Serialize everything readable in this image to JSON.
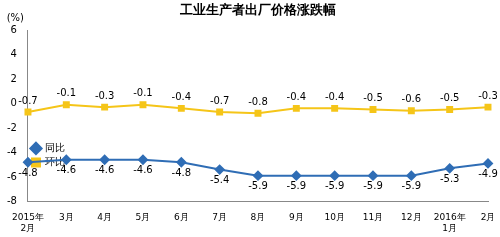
{
  "chart_data": {
    "type": "line",
    "title": "工业生产者出厂价格涨跌幅",
    "ylabel": "(%)",
    "categories": [
      "2015年2月",
      "3月",
      "4月",
      "5月",
      "6月",
      "7月",
      "8月",
      "9月",
      "10月",
      "11月",
      "12月",
      "2016年1月",
      "2月"
    ],
    "series": [
      {
        "name": "同比",
        "color": "#2f6db5",
        "marker": "diamond",
        "values": [
          -4.8,
          -4.6,
          -4.6,
          -4.6,
          -4.8,
          -5.4,
          -5.9,
          -5.9,
          -5.9,
          -5.9,
          -5.9,
          -5.3,
          -4.9
        ]
      },
      {
        "name": "环比",
        "color": "#f5c518",
        "marker": "square",
        "values": [
          -0.7,
          -0.1,
          -0.3,
          -0.1,
          -0.4,
          -0.7,
          -0.8,
          -0.4,
          -0.4,
          -0.5,
          -0.6,
          -0.5,
          -0.3
        ]
      }
    ],
    "ylim": [
      -8,
      6
    ],
    "yticks": [
      -8,
      -6,
      -4,
      -2,
      0,
      2,
      4,
      6
    ],
    "grid": false,
    "legend": "top right",
    "data_labels": true
  }
}
